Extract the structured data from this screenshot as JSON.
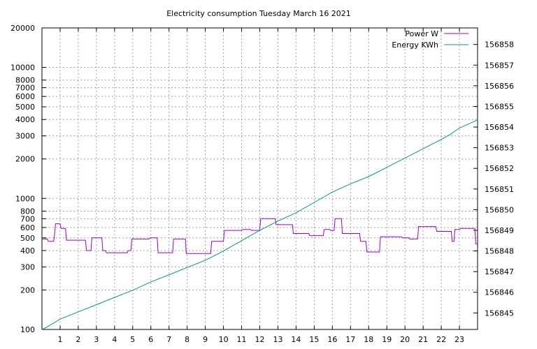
{
  "chart_data": {
    "type": "line",
    "title": "Electricity consumption Tuesday March 16 2021",
    "x_ticks": [
      1,
      2,
      3,
      4,
      5,
      6,
      7,
      8,
      9,
      10,
      11,
      12,
      13,
      14,
      15,
      16,
      17,
      18,
      19,
      20,
      21,
      22,
      23
    ],
    "xlim": [
      0,
      24
    ],
    "y_left": {
      "scale": "log",
      "ylim": [
        100,
        20000
      ],
      "ticks": [
        100,
        200,
        300,
        400,
        500,
        600,
        700,
        800,
        1000,
        2000,
        3000,
        4000,
        5000,
        6000,
        7000,
        8000,
        10000,
        20000
      ]
    },
    "y_right": {
      "scale": "linear",
      "ylim": [
        156844.2,
        156858.8
      ],
      "ticks": [
        156845,
        156846,
        156847,
        156848,
        156849,
        156850,
        156851,
        156852,
        156853,
        156854,
        156855,
        156856,
        156857,
        156858
      ]
    },
    "grid": true,
    "legend_position": "top-right",
    "series": [
      {
        "name": "Power W",
        "axis": "left",
        "color": "#9400d3",
        "step": true,
        "x": [
          0,
          0.3,
          0.35,
          0.65,
          0.75,
          1.0,
          1.05,
          1.3,
          1.35,
          1.6,
          1.65,
          2.4,
          2.45,
          2.7,
          2.75,
          3.3,
          3.35,
          3.5,
          3.55,
          4.7,
          4.75,
          4.9,
          4.95,
          5.9,
          5.95,
          6.35,
          6.4,
          7.2,
          7.25,
          7.9,
          7.95,
          9.0,
          9.05,
          9.3,
          9.35,
          10.0,
          10.05,
          11.0,
          11.05,
          11.5,
          11.55,
          12.0,
          12.05,
          12.85,
          12.9,
          13.8,
          13.85,
          14.7,
          14.75,
          15.5,
          15.55,
          15.85,
          15.9,
          16.1,
          16.15,
          16.5,
          16.55,
          17.5,
          17.55,
          17.85,
          17.9,
          18.6,
          18.65,
          19.8,
          19.85,
          20.2,
          20.25,
          20.7,
          20.75,
          21.7,
          21.75,
          22.55,
          22.6,
          22.7,
          22.75,
          23.0,
          23.05,
          23.85,
          23.9,
          24.0
        ],
        "y": [
          490,
          490,
          470,
          470,
          640,
          640,
          590,
          590,
          480,
          480,
          480,
          480,
          400,
          400,
          500,
          500,
          400,
          400,
          385,
          385,
          400,
          400,
          490,
          490,
          500,
          500,
          385,
          385,
          490,
          490,
          380,
          380,
          380,
          380,
          470,
          470,
          570,
          570,
          580,
          580,
          570,
          570,
          700,
          700,
          630,
          630,
          540,
          540,
          520,
          520,
          580,
          580,
          570,
          570,
          700,
          700,
          540,
          540,
          470,
          470,
          390,
          390,
          510,
          510,
          500,
          500,
          490,
          490,
          610,
          610,
          560,
          560,
          470,
          470,
          580,
          580,
          590,
          590,
          450,
          450
        ]
      },
      {
        "name": "Energy KWh",
        "axis": "right",
        "color": "#009e73",
        "x": [
          0,
          0.25,
          1,
          2,
          3,
          4,
          5,
          6,
          7,
          8,
          9,
          10,
          11,
          12,
          13,
          14,
          15,
          16,
          17,
          18,
          19,
          20,
          21,
          22,
          22.5,
          23,
          24
        ],
        "y": [
          156844.2,
          156844.3,
          156844.7,
          156845.05,
          156845.4,
          156845.75,
          156846.1,
          156846.5,
          156846.85,
          156847.2,
          156847.55,
          156848.0,
          156848.5,
          156849.0,
          156849.45,
          156849.85,
          156850.35,
          156850.85,
          156851.25,
          156851.6,
          156852.05,
          156852.5,
          156852.95,
          156853.4,
          156853.65,
          156853.95,
          156854.35
        ]
      }
    ]
  }
}
